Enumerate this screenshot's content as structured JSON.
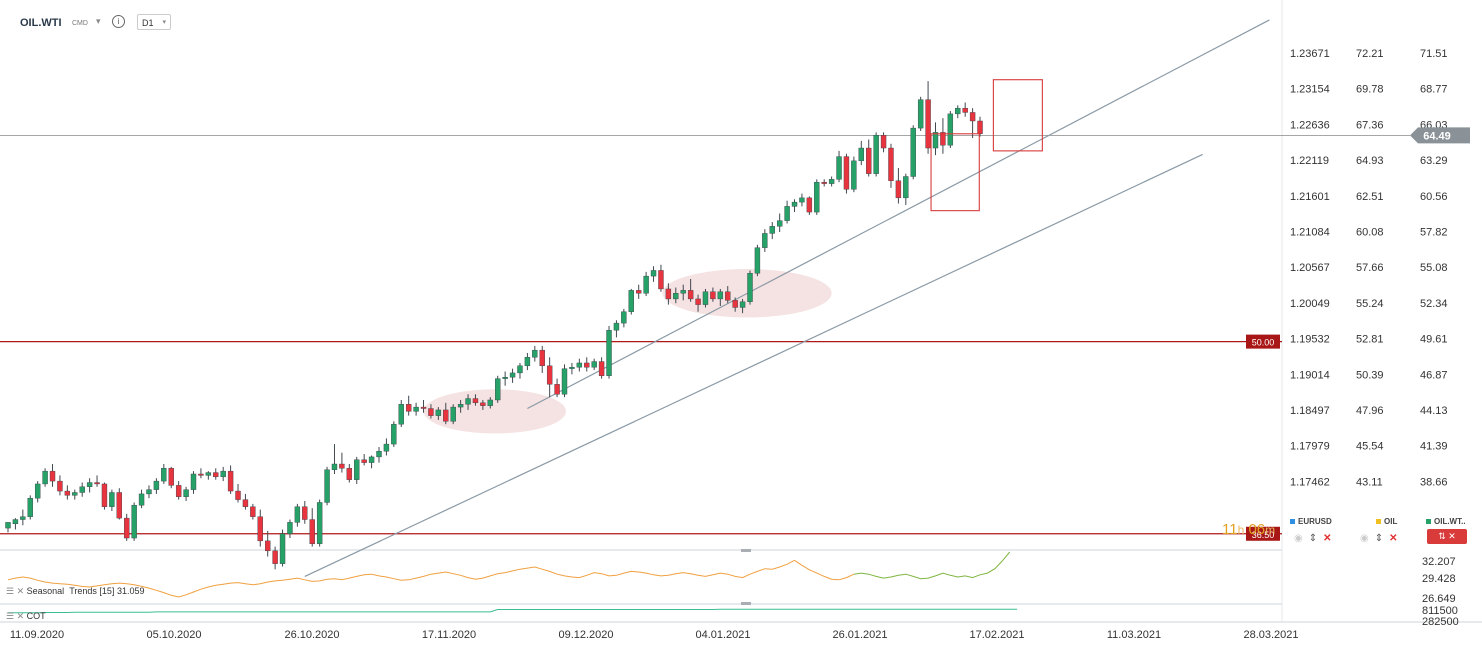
{
  "header": {
    "symbol": "OIL.WTI",
    "market": "CMD",
    "timeframe": "D1",
    "info_icon": "info-icon",
    "caret_icon": "chevron-down-icon"
  },
  "colors": {
    "up": "#26a268",
    "down": "#e8343f",
    "channel": "#8a9aa6",
    "level": "#b01818",
    "price_line": "#888888",
    "seasonal": "#f0a040",
    "seasonal_future": "#7fb540",
    "cot": "#3cbf8f",
    "highlight_fill": "#f2d8d8",
    "box": "#d83a3a"
  },
  "chart_data": {
    "type": "candlestick",
    "title": "OIL.WTI",
    "timeframe": "D1",
    "x_tick_labels": [
      "11.09.2020",
      "05.10.2020",
      "26.10.2020",
      "17.11.2020",
      "09.12.2020",
      "04.01.2021",
      "26.01.2021",
      "17.02.2021",
      "11.03.2021",
      "28.03.2021"
    ],
    "y_axis_primary": [
      "1.23671",
      "1.23154",
      "1.22636",
      "1.22119",
      "1.21601",
      "1.21084",
      "1.20567",
      "1.20049",
      "1.19532",
      "1.19014",
      "1.18497",
      "1.17979",
      "1.17462"
    ],
    "y_axis_secondary": [
      "72.21",
      "69.78",
      "67.36",
      "64.93",
      "62.51",
      "60.08",
      "57.66",
      "55.24",
      "52.81",
      "50.39",
      "47.96",
      "45.54",
      "43.11"
    ],
    "y_axis_price": [
      "71.51",
      "68.77",
      "66.03",
      "63.29",
      "60.56",
      "57.82",
      "55.08",
      "52.34",
      "49.61",
      "46.87",
      "44.13",
      "41.39",
      "38.66"
    ],
    "y_range": [
      35.5,
      74.0
    ],
    "current_price": "64.49",
    "levels": [
      {
        "label": "50.00",
        "value": 50.0
      },
      {
        "label": "36.50",
        "value": 36.5
      }
    ],
    "ohlc": [
      [
        36.9,
        37.3,
        36.6,
        37.3
      ],
      [
        37.2,
        37.6,
        36.8,
        37.5
      ],
      [
        37.5,
        38.2,
        37.1,
        37.7
      ],
      [
        37.7,
        39.2,
        37.5,
        39.0
      ],
      [
        39.0,
        40.2,
        38.7,
        40.0
      ],
      [
        40.0,
        41.1,
        39.8,
        40.9
      ],
      [
        40.9,
        41.4,
        39.8,
        40.2
      ],
      [
        40.2,
        40.6,
        39.2,
        39.5
      ],
      [
        39.5,
        39.9,
        38.9,
        39.2
      ],
      [
        39.2,
        39.6,
        38.9,
        39.4
      ],
      [
        39.4,
        40.1,
        39.1,
        39.8
      ],
      [
        39.8,
        40.4,
        39.4,
        40.1
      ],
      [
        40.1,
        40.6,
        39.8,
        40.0
      ],
      [
        40.0,
        40.1,
        38.2,
        38.4
      ],
      [
        38.4,
        39.6,
        38.1,
        39.4
      ],
      [
        39.4,
        39.7,
        37.5,
        37.6
      ],
      [
        37.6,
        37.9,
        36.0,
        36.2
      ],
      [
        36.2,
        38.7,
        36.0,
        38.5
      ],
      [
        38.5,
        39.6,
        38.3,
        39.3
      ],
      [
        39.3,
        39.9,
        39.0,
        39.6
      ],
      [
        39.6,
        40.4,
        39.3,
        40.2
      ],
      [
        40.2,
        41.4,
        40.0,
        41.1
      ],
      [
        41.1,
        41.2,
        39.7,
        39.9
      ],
      [
        39.9,
        40.2,
        38.9,
        39.1
      ],
      [
        39.1,
        39.8,
        38.8,
        39.6
      ],
      [
        39.6,
        40.9,
        39.3,
        40.7
      ],
      [
        40.7,
        41.1,
        40.4,
        40.6
      ],
      [
        40.6,
        40.9,
        40.3,
        40.8
      ],
      [
        40.8,
        41.1,
        40.3,
        40.5
      ],
      [
        40.5,
        41.2,
        40.2,
        40.9
      ],
      [
        40.9,
        41.3,
        39.3,
        39.5
      ],
      [
        39.5,
        40.0,
        38.7,
        38.9
      ],
      [
        38.9,
        39.3,
        38.2,
        38.4
      ],
      [
        38.4,
        38.6,
        37.5,
        37.7
      ],
      [
        37.7,
        38.2,
        35.6,
        36.0
      ],
      [
        36.0,
        36.7,
        34.9,
        35.3
      ],
      [
        35.3,
        35.6,
        34.0,
        34.4
      ],
      [
        34.4,
        36.8,
        34.2,
        36.5
      ],
      [
        36.5,
        37.5,
        36.2,
        37.3
      ],
      [
        37.3,
        38.6,
        37.0,
        38.4
      ],
      [
        38.4,
        38.8,
        37.2,
        37.5
      ],
      [
        37.5,
        38.3,
        35.6,
        35.8
      ],
      [
        35.8,
        38.9,
        35.6,
        38.7
      ],
      [
        38.7,
        41.2,
        38.5,
        41.0
      ],
      [
        41.0,
        42.8,
        40.7,
        41.4
      ],
      [
        41.4,
        42.2,
        40.8,
        41.1
      ],
      [
        41.1,
        41.4,
        40.1,
        40.3
      ],
      [
        40.3,
        41.9,
        40.0,
        41.7
      ],
      [
        41.7,
        42.1,
        41.3,
        41.5
      ],
      [
        41.5,
        42.0,
        41.1,
        41.9
      ],
      [
        41.9,
        42.6,
        41.5,
        42.3
      ],
      [
        42.3,
        43.2,
        42.0,
        42.8
      ],
      [
        42.8,
        44.4,
        42.6,
        44.2
      ],
      [
        44.2,
        45.9,
        44.0,
        45.6
      ],
      [
        45.6,
        46.2,
        44.8,
        45.1
      ],
      [
        45.1,
        45.7,
        44.8,
        45.4
      ],
      [
        45.4,
        45.9,
        45.0,
        45.3
      ],
      [
        45.3,
        45.6,
        44.6,
        44.8
      ],
      [
        44.8,
        45.4,
        44.5,
        45.2
      ],
      [
        45.2,
        45.7,
        44.2,
        44.4
      ],
      [
        44.4,
        45.6,
        44.2,
        45.4
      ],
      [
        45.4,
        45.9,
        45.0,
        45.6
      ],
      [
        45.6,
        46.3,
        45.2,
        46.0
      ],
      [
        46.0,
        46.3,
        45.5,
        45.7
      ],
      [
        45.7,
        45.9,
        45.2,
        45.5
      ],
      [
        45.5,
        46.1,
        45.3,
        45.9
      ],
      [
        45.9,
        47.6,
        45.7,
        47.4
      ],
      [
        47.4,
        47.9,
        46.9,
        47.5
      ],
      [
        47.5,
        48.1,
        47.1,
        47.8
      ],
      [
        47.8,
        48.5,
        47.4,
        48.3
      ],
      [
        48.3,
        49.2,
        48.0,
        48.9
      ],
      [
        48.9,
        49.7,
        48.6,
        49.4
      ],
      [
        49.4,
        49.7,
        47.8,
        48.3
      ],
      [
        48.3,
        48.9,
        46.1,
        47.0
      ],
      [
        47.0,
        47.4,
        46.1,
        46.3
      ],
      [
        46.3,
        48.4,
        46.1,
        48.1
      ],
      [
        48.1,
        48.5,
        47.7,
        48.2
      ],
      [
        48.2,
        48.8,
        47.9,
        48.5
      ],
      [
        48.5,
        48.9,
        47.9,
        48.2
      ],
      [
        48.2,
        48.8,
        48.0,
        48.6
      ],
      [
        48.6,
        48.9,
        47.4,
        47.6
      ],
      [
        47.6,
        51.1,
        47.4,
        50.8
      ],
      [
        50.8,
        51.5,
        50.3,
        51.3
      ],
      [
        51.3,
        52.3,
        51.0,
        52.1
      ],
      [
        52.1,
        53.7,
        51.9,
        53.6
      ],
      [
        53.6,
        54.0,
        53.0,
        53.4
      ],
      [
        53.4,
        54.9,
        53.2,
        54.6
      ],
      [
        54.6,
        55.3,
        54.2,
        55.0
      ],
      [
        55.0,
        55.4,
        53.5,
        53.7
      ],
      [
        53.7,
        54.1,
        52.6,
        53.0
      ],
      [
        53.0,
        53.8,
        52.7,
        53.4
      ],
      [
        53.4,
        54.0,
        52.9,
        53.6
      ],
      [
        53.6,
        54.4,
        52.8,
        53.0
      ],
      [
        53.0,
        53.3,
        52.1,
        52.6
      ],
      [
        52.6,
        53.7,
        52.4,
        53.5
      ],
      [
        53.5,
        53.8,
        52.8,
        53.0
      ],
      [
        53.0,
        53.7,
        52.5,
        53.5
      ],
      [
        53.5,
        53.9,
        52.7,
        52.9
      ],
      [
        52.9,
        53.1,
        52.1,
        52.4
      ],
      [
        52.4,
        53.0,
        52.0,
        52.8
      ],
      [
        52.8,
        55.0,
        52.6,
        54.8
      ],
      [
        54.8,
        56.8,
        54.6,
        56.6
      ],
      [
        56.6,
        57.9,
        56.3,
        57.6
      ],
      [
        57.6,
        58.4,
        57.2,
        58.1
      ],
      [
        58.1,
        59.0,
        57.7,
        58.5
      ],
      [
        58.5,
        59.9,
        58.3,
        59.5
      ],
      [
        59.5,
        60.0,
        59.1,
        59.8
      ],
      [
        59.8,
        60.4,
        59.5,
        60.1
      ],
      [
        60.1,
        60.2,
        58.9,
        59.1
      ],
      [
        59.1,
        61.4,
        58.9,
        61.2
      ],
      [
        61.2,
        61.4,
        60.9,
        61.1
      ],
      [
        61.1,
        61.6,
        60.9,
        61.4
      ],
      [
        61.4,
        63.4,
        61.2,
        63.0
      ],
      [
        63.0,
        63.2,
        60.4,
        60.7
      ],
      [
        60.7,
        63.0,
        60.5,
        62.7
      ],
      [
        62.7,
        64.1,
        62.4,
        63.6
      ],
      [
        63.6,
        64.2,
        61.6,
        61.8
      ],
      [
        61.8,
        64.7,
        61.6,
        64.5
      ],
      [
        64.5,
        64.7,
        63.3,
        63.6
      ],
      [
        63.6,
        63.9,
        60.8,
        61.3
      ],
      [
        61.3,
        62.2,
        59.7,
        60.1
      ],
      [
        60.1,
        61.8,
        59.6,
        61.6
      ],
      [
        61.6,
        65.2,
        61.4,
        65.0
      ],
      [
        65.0,
        67.2,
        64.8,
        67.0
      ],
      [
        67.0,
        68.3,
        63.2,
        63.6
      ],
      [
        63.6,
        65.4,
        63.1,
        64.7
      ],
      [
        64.7,
        65.7,
        63.2,
        63.8
      ],
      [
        63.8,
        66.2,
        63.6,
        66.0
      ],
      [
        66.0,
        66.6,
        65.7,
        66.4
      ],
      [
        66.4,
        66.8,
        65.8,
        66.1
      ],
      [
        66.1,
        66.4,
        64.3,
        65.5
      ],
      [
        65.5,
        65.8,
        64.4,
        64.6
      ]
    ],
    "channel_lines": [
      {
        "name": "upper",
        "from": {
          "i": 70.0,
          "v": 45.3
        },
        "to": {
          "i": 170.0,
          "v": 72.6
        }
      },
      {
        "name": "lower",
        "from": {
          "i": 40.0,
          "v": 33.5
        },
        "to": {
          "i": 161.0,
          "v": 63.15
        }
      }
    ],
    "highlights": [
      {
        "type": "ellipse",
        "i_center": 65.6,
        "v_center": 45.1,
        "i_radius": 9.6,
        "v_radius": 1.55
      },
      {
        "type": "ellipse",
        "i_center": 99.6,
        "v_center": 53.4,
        "i_radius": 11.4,
        "v_radius": 1.7
      }
    ],
    "boxes": [
      {
        "i_from": 124.4,
        "i_to": 130.9,
        "v_from": 59.2,
        "v_to": 64.6
      },
      {
        "i_from": 132.8,
        "i_to": 139.4,
        "v_from": 63.4,
        "v_to": 68.4
      }
    ],
    "bar_timer": {
      "hours": "11",
      "h_unit": "h",
      "minutes": "06",
      "m_unit": "m"
    },
    "legend": [
      {
        "label": "EURUSD",
        "color": "#2f8fe0"
      },
      {
        "label": "OIL",
        "color": "#f0c020"
      },
      {
        "label": "OIL.WT..",
        "color": "#26a268"
      }
    ],
    "indicators": {
      "seasonal": {
        "label": "Seasonal",
        "name": "Trends",
        "param": "[15]",
        "value": "31.059",
        "axis": [
          "32.207",
          "29.428",
          "26.649"
        ],
        "values": [
          30.0,
          30.3,
          30.5,
          30.3,
          29.9,
          29.6,
          29.4,
          29.3,
          29.2,
          29.0,
          28.8,
          28.7,
          28.9,
          29.1,
          29.3,
          29.4,
          29.3,
          29.1,
          28.8,
          28.5,
          28.1,
          27.7,
          27.2,
          26.9,
          27.3,
          27.8,
          28.3,
          28.7,
          29.0,
          29.2,
          29.4,
          29.5,
          29.3,
          29.1,
          29.3,
          29.6,
          29.8,
          29.9,
          30.1,
          30.3,
          30.0,
          29.7,
          29.8,
          30.1,
          30.2,
          30.0,
          30.3,
          30.6,
          30.9,
          31.0,
          30.7,
          30.5,
          30.2,
          29.9,
          30.0,
          30.3,
          30.6,
          31.0,
          31.2,
          31.4,
          31.1,
          30.8,
          30.4,
          30.1,
          30.3,
          30.7,
          31.1,
          31.3,
          31.6,
          31.9,
          32.1,
          32.3,
          31.9,
          31.5,
          31.0,
          30.7,
          30.5,
          30.4,
          30.8,
          31.3,
          31.1,
          30.7,
          30.8,
          31.2,
          31.5,
          31.4,
          31.2,
          30.9,
          30.7,
          30.8,
          31.1,
          31.3,
          31.1,
          30.8,
          30.6,
          30.9,
          31.2,
          31.0,
          30.6,
          30.4,
          31.0,
          31.5,
          32.0,
          31.9,
          32.3,
          32.8,
          33.5,
          32.6,
          31.8,
          31.2,
          30.6,
          30.1,
          30.0,
          30.4,
          31.0,
          31.2,
          31.0,
          30.6,
          30.3,
          30.5,
          30.8,
          31.0,
          30.6,
          30.2,
          30.3,
          30.7,
          31.2,
          30.8,
          30.5,
          30.7,
          30.4,
          30.9,
          31.2,
          32.0,
          33.4,
          35.0
        ]
      },
      "cot": {
        "label": "COT",
        "axis": [
          "811500",
          "282500"
        ],
        "values": [
          0.2,
          0.2,
          0.2,
          0.2,
          0.2,
          0.25,
          0.25,
          0.25,
          0.25,
          0.3,
          0.3,
          0.3,
          0.3,
          0.3,
          0.3,
          0.3,
          0.3,
          0.3,
          0.3,
          0.3,
          0.35,
          0.35,
          0.35,
          0.35,
          0.35,
          0.35,
          0.35,
          0.35,
          0.35,
          0.35,
          0.35,
          0.35,
          0.35,
          0.35,
          0.35,
          0.35,
          0.35,
          0.35,
          0.35,
          0.35,
          0.35,
          0.35,
          0.35,
          0.35,
          0.35,
          0.35,
          0.35,
          0.35,
          0.35,
          0.35,
          0.35,
          0.35,
          0.35,
          0.35,
          0.35,
          0.35,
          0.35,
          0.35,
          0.35,
          0.35,
          0.35,
          0.35,
          0.35,
          0.35,
          0.35,
          0.35,
          0.75,
          0.75,
          0.75,
          0.75,
          0.75,
          0.75,
          0.75,
          0.75,
          0.75,
          0.75,
          0.75,
          0.75,
          0.75,
          0.75,
          0.75,
          0.75,
          0.75,
          0.75,
          0.75,
          0.75,
          0.75,
          0.75,
          0.75,
          0.75,
          0.75,
          0.75,
          0.75,
          0.75,
          0.75,
          0.75,
          0.8,
          0.8,
          0.8,
          0.8,
          0.8,
          0.8,
          0.8,
          0.8,
          0.8,
          0.8,
          0.8,
          0.8,
          0.8,
          0.8,
          0.8,
          0.8,
          0.8,
          0.8,
          0.8,
          0.8,
          0.8,
          0.8,
          0.8,
          0.8,
          0.8,
          0.8,
          0.8,
          0.8,
          0.8,
          0.8,
          0.8,
          0.8,
          0.8,
          0.8,
          0.8,
          0.8,
          0.8,
          0.8,
          0.8,
          0.8,
          0.8
        ]
      }
    }
  }
}
